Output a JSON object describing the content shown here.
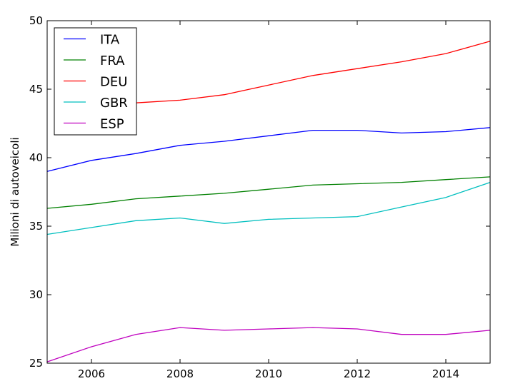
{
  "chart_data": {
    "type": "line",
    "title": "",
    "xlabel": "",
    "ylabel": "Milioni di autoveicoli",
    "xlim": [
      2005,
      2015
    ],
    "ylim": [
      25,
      50
    ],
    "xticks": [
      2006,
      2008,
      2010,
      2012,
      2014
    ],
    "yticks": [
      25,
      30,
      35,
      40,
      45,
      50
    ],
    "grid": false,
    "legend_position": "top-left",
    "x": [
      2005,
      2006,
      2007,
      2008,
      2009,
      2010,
      2011,
      2012,
      2013,
      2014,
      2015
    ],
    "series": [
      {
        "name": "ITA",
        "color": "#0000ff",
        "values": [
          39.0,
          39.8,
          40.3,
          40.9,
          41.2,
          41.6,
          42.0,
          42.0,
          41.8,
          41.9,
          42.2
        ]
      },
      {
        "name": "FRA",
        "color": "#008000",
        "values": [
          36.3,
          36.6,
          37.0,
          37.2,
          37.4,
          37.7,
          38.0,
          38.1,
          38.2,
          38.4,
          38.6
        ]
      },
      {
        "name": "DEU",
        "color": "#ff0000",
        "values": [
          null,
          null,
          44.0,
          44.2,
          44.6,
          45.3,
          46.0,
          46.5,
          47.0,
          47.6,
          48.5
        ]
      },
      {
        "name": "GBR",
        "color": "#00bfbf",
        "values": [
          34.4,
          34.9,
          35.4,
          35.6,
          35.2,
          35.5,
          35.6,
          35.7,
          36.4,
          37.1,
          38.2
        ]
      },
      {
        "name": "ESP",
        "color": "#bf00bf",
        "values": [
          25.1,
          26.2,
          27.1,
          27.6,
          27.4,
          27.5,
          27.6,
          27.5,
          27.1,
          27.1,
          27.4
        ]
      }
    ]
  }
}
